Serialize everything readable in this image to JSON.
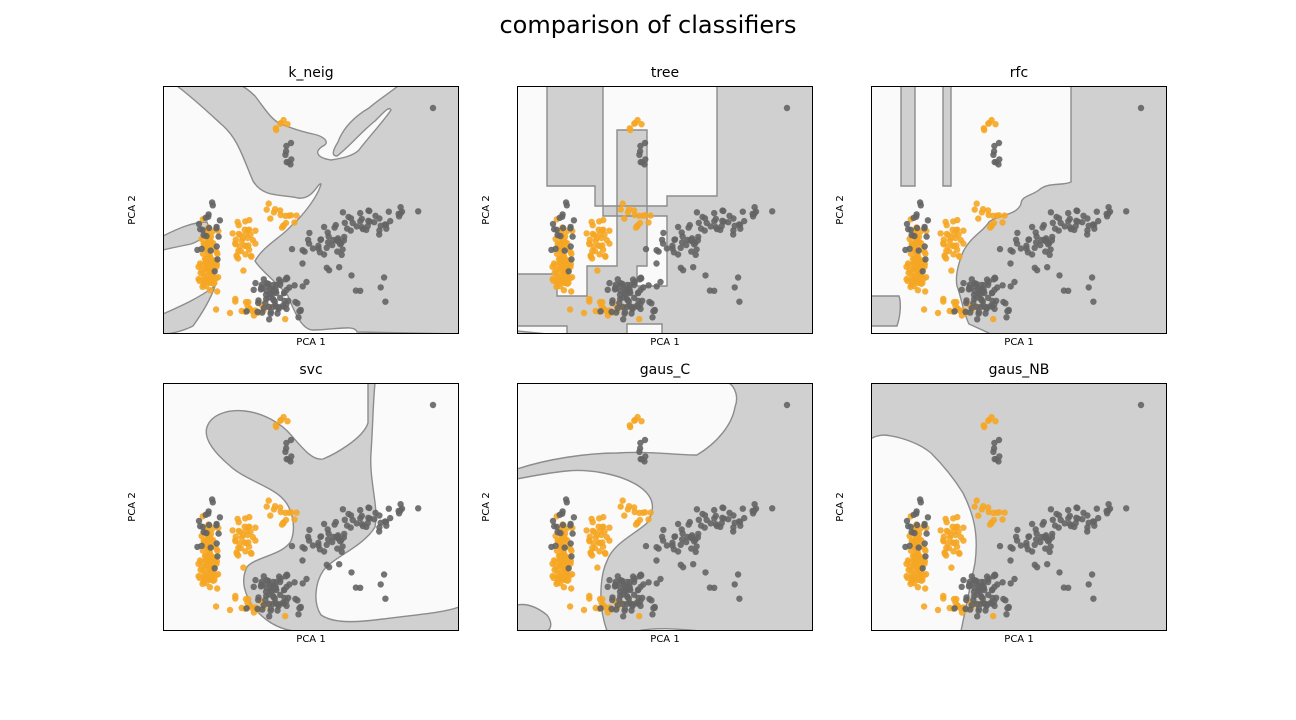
{
  "figure": {
    "suptitle": "comparison of classifiers"
  },
  "colors": {
    "class0": "#f5a623",
    "class1": "#646464",
    "region0": "#fafafa",
    "region1": "#d0d0d0",
    "boundary": "#8c8c8c",
    "frame": "#000000"
  },
  "chart_data": [
    {
      "type": "scatter",
      "title": "k_neig",
      "xlabel": "PCA 1",
      "ylabel": "PCA 2",
      "decision_regions": true
    },
    {
      "type": "scatter",
      "title": "tree",
      "xlabel": "PCA 1",
      "ylabel": "PCA 2",
      "decision_regions": true
    },
    {
      "type": "scatter",
      "title": "rfc",
      "xlabel": "PCA 1",
      "ylabel": "PCA 2",
      "decision_regions": true
    },
    {
      "type": "scatter",
      "title": "svc",
      "xlabel": "PCA 1",
      "ylabel": "PCA 2",
      "decision_regions": true
    },
    {
      "type": "scatter",
      "title": "gaus_C",
      "xlabel": "PCA 1",
      "ylabel": "PCA 2",
      "decision_regions": true
    },
    {
      "type": "scatter",
      "title": "gaus_NB",
      "xlabel": "PCA 1",
      "ylabel": "PCA 2",
      "decision_regions": true
    }
  ]
}
